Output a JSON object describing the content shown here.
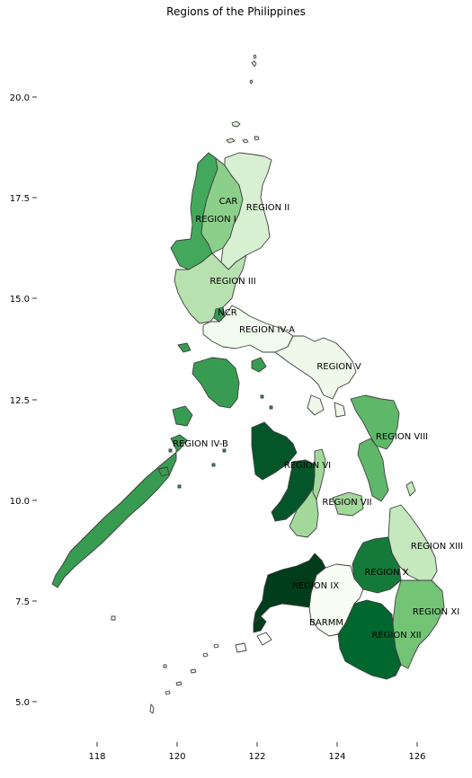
{
  "title": "Regions of the Philippines",
  "axes": {
    "x_ticks": [
      "118",
      "120",
      "122",
      "124",
      "126"
    ],
    "y_ticks": [
      "20.0",
      "17.5",
      "15.0",
      "12.5",
      "10.0",
      "7.5",
      "5.0"
    ]
  },
  "colors": {
    "outline": "#3f3f3f",
    "colormap": "Greens"
  },
  "regions": [
    {
      "label": "CAR",
      "color": "#8ccf8b"
    },
    {
      "label": "REGION I",
      "color": "#43a85c"
    },
    {
      "label": "REGION II",
      "color": "#d8f0d2"
    },
    {
      "label": "REGION III",
      "color": "#b7e1af"
    },
    {
      "label": "NCR",
      "color": "#3a9a55"
    },
    {
      "label": "REGION IV-A",
      "color": "#f1faee"
    },
    {
      "label": "REGION V",
      "color": "#eff8ea"
    },
    {
      "label": "REGION IV-B",
      "color": "#379b51"
    },
    {
      "label": "REGION VI",
      "color": "#04552a"
    },
    {
      "label": "REGION VII",
      "color": "#a3d89b"
    },
    {
      "label": "REGION VIII",
      "color": "#5fb76a"
    },
    {
      "label": "REGION IX",
      "color": "#003d1a"
    },
    {
      "label": "REGION X",
      "color": "#147a39"
    },
    {
      "label": "REGION XI",
      "color": "#74c476"
    },
    {
      "label": "REGION XII",
      "color": "#00672f"
    },
    {
      "label": "REGION XIII",
      "color": "#c5e8be"
    },
    {
      "label": "BARMM",
      "color": "#f7fcf5"
    }
  ]
}
